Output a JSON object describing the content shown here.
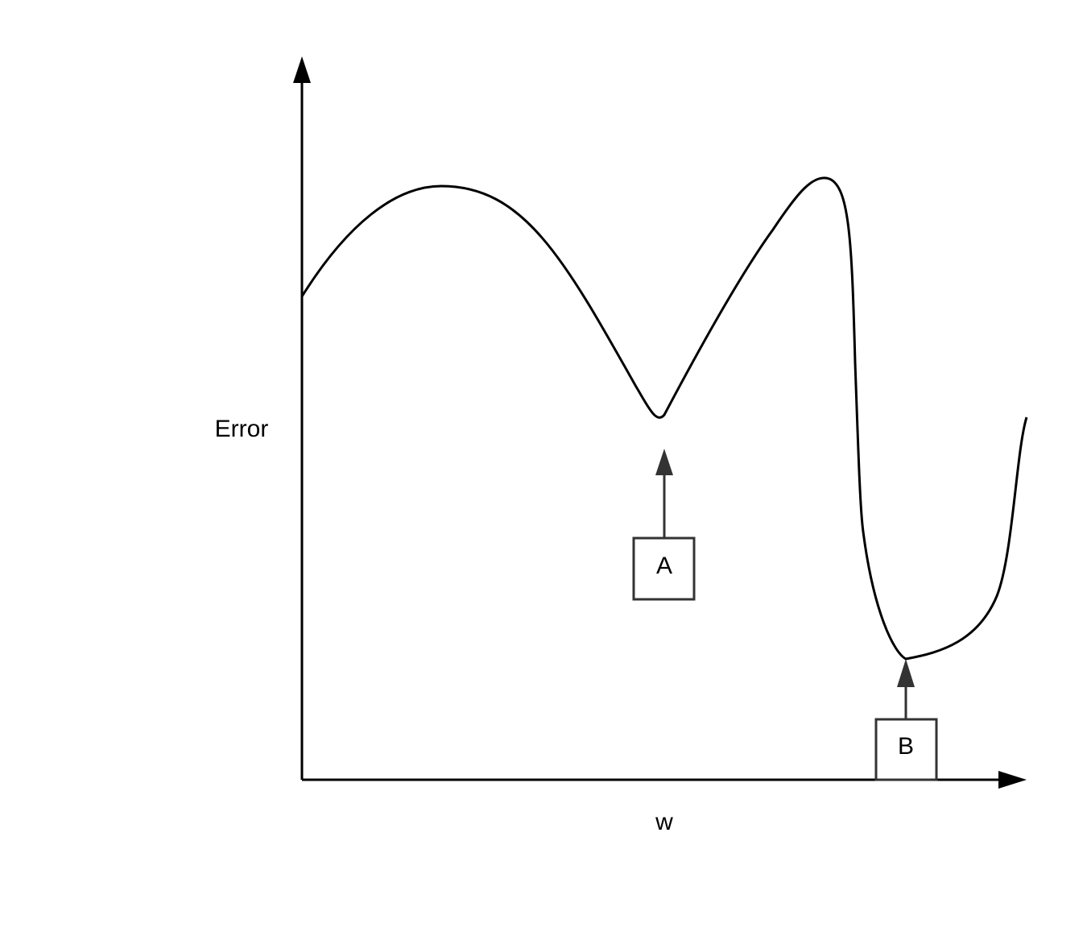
{
  "axes": {
    "y_label": "Error",
    "x_label": "w"
  },
  "annotations": [
    {
      "label": "A"
    },
    {
      "label": "B"
    }
  ]
}
